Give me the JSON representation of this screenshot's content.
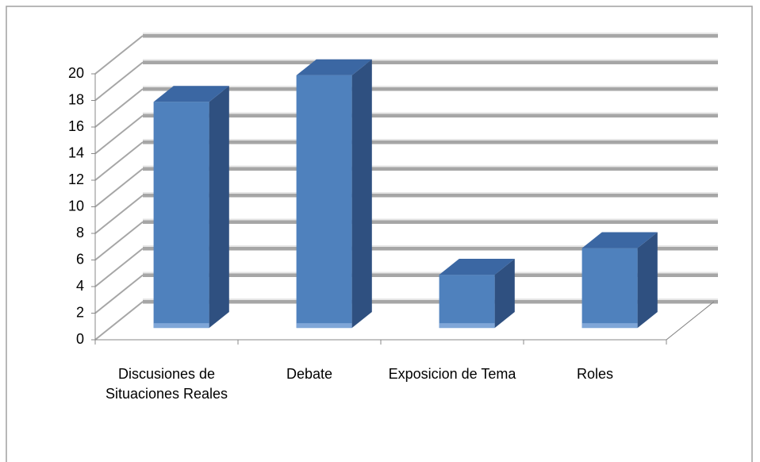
{
  "chart_data": {
    "type": "bar3d",
    "categories": [
      "Discusiones de Situaciones Reales",
      "Debate",
      "Exposicion de Tema",
      "Roles"
    ],
    "values": [
      17,
      19,
      4,
      6
    ],
    "color": "#4f81bd",
    "ylim": [
      0,
      20
    ],
    "yticks": [
      0,
      2,
      4,
      6,
      8,
      10,
      12,
      14,
      16,
      18,
      20
    ],
    "grid": true
  }
}
